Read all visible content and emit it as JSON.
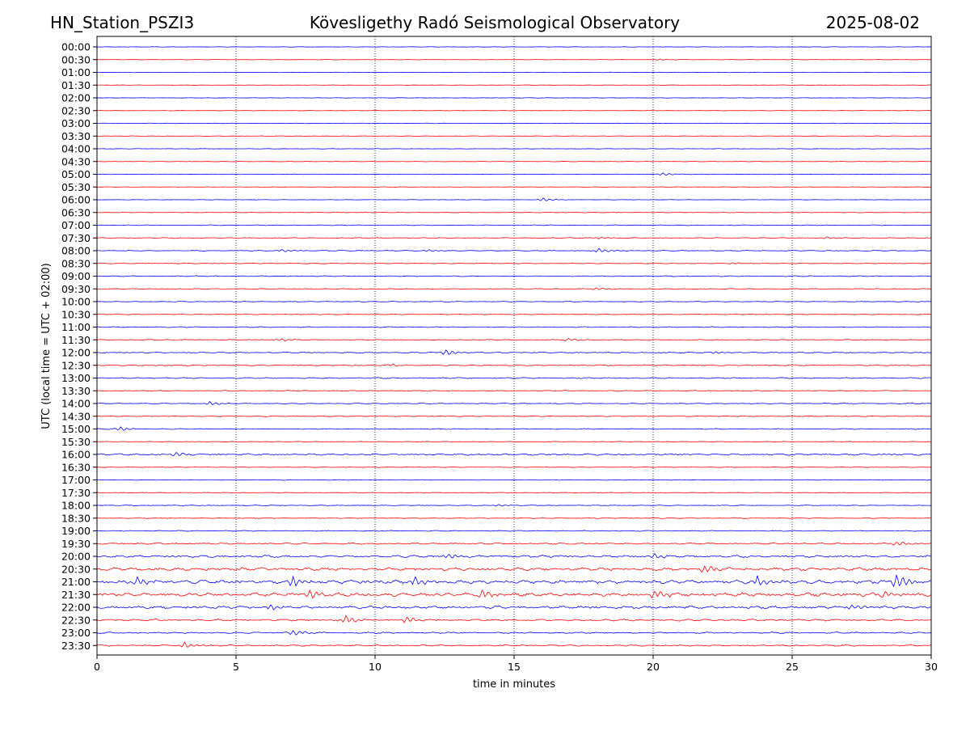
{
  "chart_data": {
    "type": "line",
    "station": "HN_Station_PSZI3",
    "title": "Kövesligethy Radó Seismological Observatory",
    "date": "2025-08-02",
    "xlabel": "time in minutes",
    "ylabel": "UTC (local time = UTC + 02:00)",
    "xlim": [
      0,
      30
    ],
    "x_ticks": [
      "0",
      "5",
      "10",
      "15",
      "20",
      "25",
      "30"
    ],
    "x_tick_values": [
      0,
      5,
      10,
      15,
      20,
      25,
      30
    ],
    "vertical_gridlines_at": [
      5,
      10,
      15,
      20,
      25
    ],
    "grid": "vertical dotted",
    "row_labels": [
      "00:00",
      "00:30",
      "01:00",
      "01:30",
      "02:00",
      "02:30",
      "03:00",
      "03:30",
      "04:00",
      "04:30",
      "05:00",
      "05:30",
      "06:00",
      "06:30",
      "07:00",
      "07:30",
      "08:00",
      "08:30",
      "09:00",
      "09:30",
      "10:00",
      "10:30",
      "11:00",
      "11:30",
      "12:00",
      "12:30",
      "13:00",
      "13:30",
      "14:00",
      "14:30",
      "15:00",
      "15:30",
      "16:00",
      "16:30",
      "17:00",
      "17:30",
      "18:00",
      "18:30",
      "19:00",
      "19:30",
      "20:00",
      "20:30",
      "21:00",
      "21:30",
      "22:00",
      "22:30",
      "23:00",
      "23:30"
    ],
    "series_colors": {
      "even_rows": "#0000ff",
      "odd_rows": "#ff0000"
    },
    "noise_level": [
      0.3,
      0.3,
      0.3,
      0.3,
      0.3,
      0.3,
      0.3,
      0.3,
      0.3,
      0.3,
      0.3,
      0.3,
      0.3,
      0.4,
      0.5,
      0.6,
      0.6,
      0.6,
      0.6,
      0.5,
      0.5,
      0.5,
      0.6,
      0.6,
      0.8,
      0.8,
      0.8,
      0.6,
      0.6,
      0.6,
      0.6,
      0.4,
      1.2,
      0.5,
      0.4,
      0.4,
      0.5,
      0.6,
      0.6,
      1.0,
      1.6,
      2.2,
      2.6,
      2.6,
      2.0,
      1.4,
      1.1,
      1.0
    ],
    "events": [
      {
        "row": 1,
        "t": 20.2,
        "amp": 1.0
      },
      {
        "row": 10,
        "t": 20.3,
        "amp": 2.0
      },
      {
        "row": 12,
        "t": 16.0,
        "amp": 2.5
      },
      {
        "row": 15,
        "t": 18.1,
        "amp": 1.5
      },
      {
        "row": 15,
        "t": 26.2,
        "amp": 1.5
      },
      {
        "row": 16,
        "t": 6.6,
        "amp": 2.0
      },
      {
        "row": 16,
        "t": 11.9,
        "amp": 1.5
      },
      {
        "row": 16,
        "t": 18.0,
        "amp": 3.0
      },
      {
        "row": 17,
        "t": 22.8,
        "amp": 1.0
      },
      {
        "row": 19,
        "t": 17.9,
        "amp": 1.5
      },
      {
        "row": 23,
        "t": 6.6,
        "amp": 2.0
      },
      {
        "row": 23,
        "t": 16.9,
        "amp": 2.0
      },
      {
        "row": 24,
        "t": 12.5,
        "amp": 4.0
      },
      {
        "row": 24,
        "t": 22.2,
        "amp": 1.5
      },
      {
        "row": 25,
        "t": 10.6,
        "amp": 1.5
      },
      {
        "row": 28,
        "t": 4.0,
        "amp": 2.5
      },
      {
        "row": 30,
        "t": 0.8,
        "amp": 3.0
      },
      {
        "row": 32,
        "t": 2.8,
        "amp": 3.0
      },
      {
        "row": 36,
        "t": 14.4,
        "amp": 1.5
      },
      {
        "row": 40,
        "t": 12.6,
        "amp": 3.0
      },
      {
        "row": 40,
        "t": 20.0,
        "amp": 3.0
      },
      {
        "row": 39,
        "t": 28.7,
        "amp": 3.0
      },
      {
        "row": 41,
        "t": 21.8,
        "amp": 5.0
      },
      {
        "row": 42,
        "t": 1.4,
        "amp": 6.0
      },
      {
        "row": 42,
        "t": 7.0,
        "amp": 7.0
      },
      {
        "row": 42,
        "t": 11.4,
        "amp": 6.0
      },
      {
        "row": 42,
        "t": 23.7,
        "amp": 7.0
      },
      {
        "row": 42,
        "t": 28.7,
        "amp": 10.0
      },
      {
        "row": 43,
        "t": 7.6,
        "amp": 6.0
      },
      {
        "row": 43,
        "t": 13.8,
        "amp": 5.0
      },
      {
        "row": 43,
        "t": 20.0,
        "amp": 6.0
      },
      {
        "row": 43,
        "t": 28.3,
        "amp": 5.0
      },
      {
        "row": 44,
        "t": 6.2,
        "amp": 4.0
      },
      {
        "row": 44,
        "t": 27.1,
        "amp": 4.0
      },
      {
        "row": 45,
        "t": 8.9,
        "amp": 5.0
      },
      {
        "row": 45,
        "t": 11.1,
        "amp": 4.0
      },
      {
        "row": 46,
        "t": 7.0,
        "amp": 4.0
      },
      {
        "row": 47,
        "t": 3.1,
        "amp": 4.0
      }
    ]
  }
}
